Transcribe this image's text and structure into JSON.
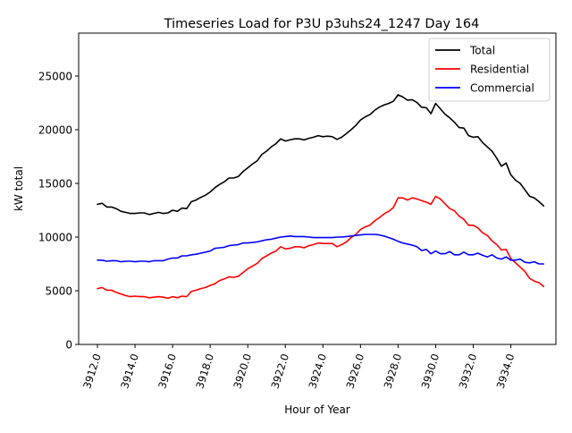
{
  "chart_data": {
    "type": "line",
    "title": "Timeseries Load for P3U p3uhs24_1247  Day 164",
    "xlabel": "Hour of Year",
    "ylabel": "kW total",
    "xlim": [
      3911.0,
      3936.4
    ],
    "ylim": [
      0,
      29000
    ],
    "xticks": [
      3912,
      3914,
      3916,
      3918,
      3920,
      3922,
      3924,
      3926,
      3928,
      3930,
      3932,
      3934
    ],
    "xtick_labels": [
      "3912.0",
      "3914.0",
      "3916.0",
      "3918.0",
      "3920.0",
      "3922.0",
      "3924.0",
      "3926.0",
      "3928.0",
      "3930.0",
      "3932.0",
      "3934.0"
    ],
    "yticks": [
      0,
      5000,
      10000,
      15000,
      20000,
      25000
    ],
    "ytick_labels": [
      "0",
      "5000",
      "10000",
      "15000",
      "20000",
      "25000"
    ],
    "grid": false,
    "legend_position": "top-right",
    "x": [
      3912.0,
      3912.25,
      3912.5,
      3912.75,
      3913.0,
      3913.25,
      3913.5,
      3913.75,
      3914.0,
      3914.25,
      3914.5,
      3914.75,
      3915.0,
      3915.25,
      3915.5,
      3915.75,
      3916.0,
      3916.25,
      3916.5,
      3916.75,
      3917.0,
      3917.25,
      3917.5,
      3917.75,
      3918.0,
      3918.25,
      3918.5,
      3918.75,
      3919.0,
      3919.25,
      3919.5,
      3919.75,
      3920.0,
      3920.25,
      3920.5,
      3920.75,
      3921.0,
      3921.25,
      3921.5,
      3921.75,
      3922.0,
      3922.25,
      3922.5,
      3922.75,
      3923.0,
      3923.25,
      3923.5,
      3923.75,
      3924.0,
      3924.25,
      3924.5,
      3924.75,
      3925.0,
      3925.25,
      3925.5,
      3925.75,
      3926.0,
      3926.25,
      3926.5,
      3926.75,
      3927.0,
      3927.25,
      3927.5,
      3927.75,
      3928.0,
      3928.25,
      3928.5,
      3928.75,
      3929.0,
      3929.25,
      3929.5,
      3929.75,
      3930.0,
      3930.25,
      3930.5,
      3930.75,
      3931.0,
      3931.25,
      3931.5,
      3931.75,
      3932.0,
      3932.25,
      3932.5,
      3932.75,
      3933.0,
      3933.25,
      3933.5,
      3933.75,
      3934.0,
      3934.25,
      3934.5,
      3934.75,
      3935.0,
      3935.25,
      3935.5,
      3935.75
    ],
    "series": [
      {
        "name": "Total",
        "color": "#000000",
        "values": [
          13050,
          13150,
          12800,
          12800,
          12650,
          12400,
          12300,
          12200,
          12200,
          12250,
          12250,
          12100,
          12200,
          12300,
          12200,
          12250,
          12500,
          12400,
          12700,
          12650,
          13300,
          13450,
          13700,
          13900,
          14200,
          14600,
          14900,
          15150,
          15500,
          15500,
          15650,
          16100,
          16450,
          16800,
          17100,
          17700,
          18000,
          18400,
          18700,
          19150,
          18950,
          19050,
          19150,
          19150,
          19050,
          19200,
          19300,
          19450,
          19350,
          19400,
          19350,
          19100,
          19300,
          19650,
          20000,
          20400,
          20900,
          21200,
          21400,
          21800,
          22100,
          22300,
          22450,
          22650,
          23250,
          23050,
          22750,
          22800,
          22550,
          22100,
          22050,
          21500,
          22450,
          21950,
          21450,
          21100,
          20700,
          20200,
          20150,
          19450,
          19300,
          19350,
          18800,
          18400,
          18000,
          17350,
          16600,
          16900,
          15800,
          15300,
          15000,
          14400,
          13800,
          13650,
          13300,
          12900
        ]
      },
      {
        "name": "Residential",
        "color": "#ff0000",
        "values": [
          5200,
          5300,
          5050,
          5050,
          4850,
          4700,
          4550,
          4450,
          4500,
          4450,
          4450,
          4350,
          4400,
          4450,
          4400,
          4300,
          4450,
          4350,
          4500,
          4450,
          4950,
          5050,
          5200,
          5300,
          5500,
          5650,
          5950,
          6100,
          6300,
          6250,
          6350,
          6700,
          7050,
          7300,
          7550,
          8000,
          8250,
          8500,
          8700,
          9100,
          8900,
          8950,
          9100,
          9100,
          9000,
          9200,
          9300,
          9450,
          9400,
          9400,
          9400,
          9100,
          9300,
          9550,
          9950,
          10250,
          10700,
          10950,
          11100,
          11500,
          11800,
          12150,
          12400,
          12750,
          13650,
          13650,
          13450,
          13650,
          13550,
          13400,
          13250,
          13050,
          13800,
          13550,
          13100,
          12650,
          12450,
          11950,
          11650,
          11100,
          11100,
          10850,
          10400,
          10150,
          9650,
          9300,
          8800,
          8850,
          8000,
          7600,
          7200,
          6800,
          6150,
          5900,
          5750,
          5400
        ]
      },
      {
        "name": "Commercial",
        "color": "#0000ff",
        "values": [
          7850,
          7850,
          7750,
          7800,
          7800,
          7700,
          7750,
          7750,
          7700,
          7750,
          7750,
          7700,
          7800,
          7800,
          7800,
          7950,
          8050,
          8050,
          8250,
          8250,
          8350,
          8400,
          8500,
          8600,
          8700,
          8950,
          9000,
          9050,
          9200,
          9250,
          9300,
          9450,
          9450,
          9500,
          9550,
          9650,
          9750,
          9800,
          9900,
          10000,
          10050,
          10100,
          10050,
          10050,
          10050,
          10000,
          9950,
          9950,
          9950,
          9950,
          9950,
          10000,
          10000,
          10050,
          10100,
          10150,
          10200,
          10250,
          10250,
          10250,
          10200,
          10100,
          9950,
          9800,
          9600,
          9450,
          9350,
          9250,
          9100,
          8750,
          8850,
          8450,
          8700,
          8450,
          8450,
          8650,
          8350,
          8350,
          8600,
          8350,
          8350,
          8500,
          8300,
          8150,
          8350,
          8050,
          7950,
          8150,
          7850,
          7850,
          7950,
          7650,
          7600,
          7700,
          7500,
          7500
        ]
      }
    ]
  }
}
